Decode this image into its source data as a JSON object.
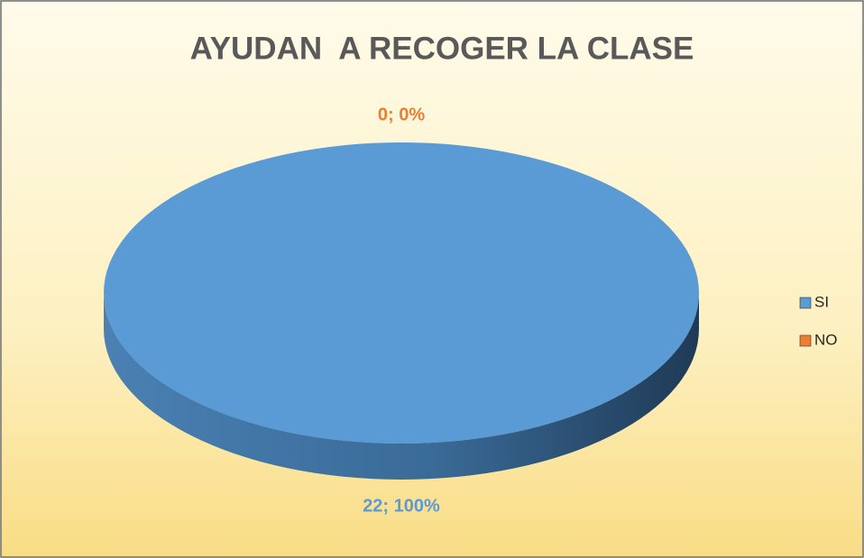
{
  "chart_data": {
    "type": "pie",
    "title": "AYUDAN  A RECOGER LA CLASE",
    "categories": [
      "SI",
      "NO"
    ],
    "values": [
      22,
      0
    ],
    "value_labels": [
      "22; 100%",
      "0; 0%"
    ],
    "colors": [
      "#5b9bd5",
      "#ed7d31"
    ],
    "legend": "right"
  }
}
